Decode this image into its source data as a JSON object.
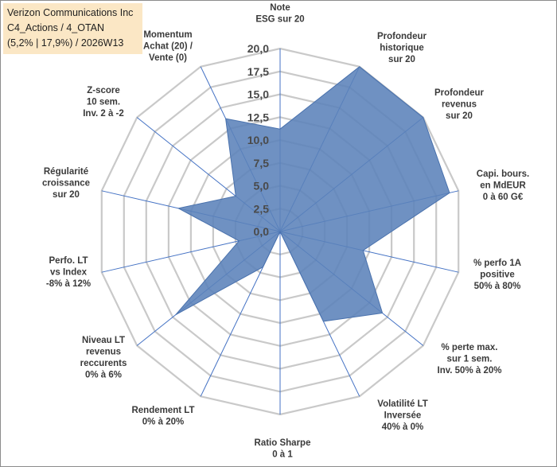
{
  "title": {
    "line1": "Verizon Communications Inc",
    "line2": "C4_Actions / 4_OTAN",
    "line3": "(5,2% | 17,9%) / 2026W13"
  },
  "colors": {
    "fill": "#5b82b9",
    "stroke": "#4a72ad",
    "grid": "#c9c9c9",
    "spoke": "#4472c4",
    "title_bg": "#fbe7c5"
  },
  "chart_data": {
    "type": "radar",
    "rmin": 0,
    "rmax": 20,
    "ticks": [
      "0,0",
      "2,5",
      "5,0",
      "7,5",
      "10,0",
      "12,5",
      "15,0",
      "17,5",
      "20,0"
    ],
    "tick_values": [
      0,
      2.5,
      5,
      7.5,
      10,
      12.5,
      15,
      17.5,
      20
    ],
    "axes": [
      {
        "label": [
          "Note",
          "ESG sur 20"
        ],
        "value": 11.2
      },
      {
        "label": [
          "Profondeur",
          "historique",
          "sur 20"
        ],
        "value": 20
      },
      {
        "label": [
          "Profondeur",
          "revenus",
          "sur 20"
        ],
        "value": 20
      },
      {
        "label": [
          "Capi. bours.",
          "en MdEUR",
          "0 à 60 G€"
        ],
        "value": 19
      },
      {
        "label": [
          "% perfo 1A",
          "positive",
          "50% à 80%"
        ],
        "value": 9.3
      },
      {
        "label": [
          "% perte max.",
          "sur 1 sem.",
          "Inv. 50% à 20%"
        ],
        "value": 14.3
      },
      {
        "label": [
          "Volatilité LT",
          "Inversée",
          "40% à 0%"
        ],
        "value": 10.9
      },
      {
        "label": [
          "Ratio Sharpe",
          "0 à 1"
        ],
        "value": 0
      },
      {
        "label": [
          "Rendement LT",
          "0% à 20%"
        ],
        "value": 4.3
      },
      {
        "label": [
          "Niveau LT",
          "revenus",
          "reccurents",
          "0% à 6%"
        ],
        "value": 14.6
      },
      {
        "label": [
          "Perfo. LT",
          "vs Index",
          "-8% à 12%"
        ],
        "value": 4.6
      },
      {
        "label": [
          "Régularité",
          "croissance",
          "sur 20"
        ],
        "value": 11.4
      },
      {
        "label": [
          "Z-score",
          "10 sem.",
          "Inv. 2 à -2"
        ],
        "value": 6.2
      },
      {
        "label": [
          "Momentum",
          "Achat (20) /",
          "Vente (0)"
        ],
        "value": 13.7
      }
    ]
  }
}
